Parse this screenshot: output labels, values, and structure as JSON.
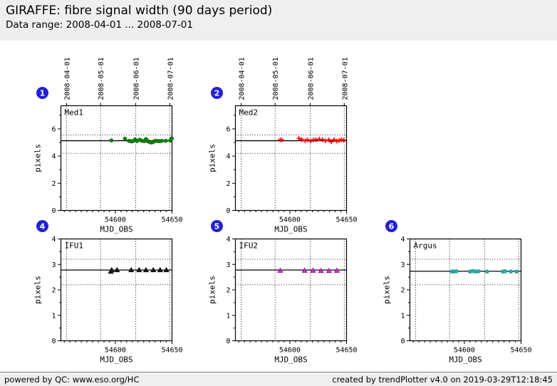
{
  "header": {
    "title": "GIRAFFE: fibre signal width (90 days period)",
    "subtitle": "Data range: 2008-04-01 ... 2008-07-01"
  },
  "footer": {
    "left": "powered by QC: www.eso.org/HC",
    "right": "created by trendPlotter v4.0 on 2019-03-29T12:18:45"
  },
  "colors": {
    "badge": "#2020dd",
    "header_band": "#efefef",
    "footer_band": "#efefef"
  },
  "chart_data": {
    "type": "scatter",
    "xlabel": "MJD_OBS",
    "ylabel": "pixels",
    "grid": true,
    "date_ticks": [
      {
        "mjd": 54557,
        "label": "2008-04-01"
      },
      {
        "mjd": 54587,
        "label": "2008-05-01"
      },
      {
        "mjd": 54618,
        "label": "2008-06-01"
      },
      {
        "mjd": 54648,
        "label": "2008-07-01"
      }
    ],
    "plots": [
      {
        "number": "1",
        "label": "Med1",
        "row": 0,
        "col": 0,
        "marker": "circle",
        "color": "#0e8c0e",
        "edge": "#045804",
        "xlim": [
          54552,
          54650
        ],
        "ylim": [
          0,
          7.7
        ],
        "xticks": [
          54600,
          54650
        ],
        "xminor": 5,
        "yticks": [
          0,
          2,
          4,
          6
        ],
        "yminor": 1,
        "top_axis": true,
        "mean": 5.13,
        "thresholds": [
          4.2,
          5.55
        ],
        "points": [
          [
            54596.5,
            5.15
          ],
          [
            54608.5,
            5.28
          ],
          [
            54612,
            5.12
          ],
          [
            54614,
            5.08
          ],
          [
            54615.5,
            5.1
          ],
          [
            54617.5,
            5.22
          ],
          [
            54619,
            5.1
          ],
          [
            54621.5,
            5.2
          ],
          [
            54623.5,
            5.12
          ],
          [
            54625.5,
            5.1
          ],
          [
            54627,
            5.25
          ],
          [
            54628.5,
            5.1
          ],
          [
            54630,
            5.05
          ],
          [
            54631.5,
            5.0
          ],
          [
            54633,
            5.02
          ],
          [
            54634.5,
            5.1
          ],
          [
            54636,
            5.12
          ],
          [
            54638,
            5.1
          ],
          [
            54639.5,
            5.1
          ],
          [
            54641,
            5.12
          ],
          [
            54644.5,
            5.12
          ],
          [
            54648.5,
            5.15
          ],
          [
            54649.8,
            5.3
          ]
        ]
      },
      {
        "number": "2",
        "label": "Med2",
        "row": 0,
        "col": 1,
        "marker": "plus",
        "color": "#ff0000",
        "edge": "#ff0000",
        "xlim": [
          54552,
          54650
        ],
        "ylim": [
          0,
          7.7
        ],
        "xticks": [
          54600,
          54650
        ],
        "xminor": 5,
        "yticks": [
          0,
          2,
          4,
          6
        ],
        "yminor": 1,
        "top_axis": true,
        "mean": 5.13,
        "thresholds": [
          4.2,
          5.55
        ],
        "points": [
          [
            54591.5,
            5.2
          ],
          [
            54593,
            5.18
          ],
          [
            54608,
            5.3
          ],
          [
            54610.5,
            5.22
          ],
          [
            54613.5,
            5.12
          ],
          [
            54615.5,
            5.2
          ],
          [
            54618.5,
            5.1
          ],
          [
            54621,
            5.2
          ],
          [
            54623,
            5.2
          ],
          [
            54626,
            5.25
          ],
          [
            54629,
            5.2
          ],
          [
            54631.5,
            5.12
          ],
          [
            54634.5,
            5.2
          ],
          [
            54636.5,
            5.05
          ],
          [
            54639,
            5.2
          ],
          [
            54641.5,
            5.1
          ],
          [
            54643.5,
            5.15
          ],
          [
            54645.5,
            5.2
          ],
          [
            54647.5,
            5.18
          ]
        ]
      },
      {
        "number": "4",
        "label": "IFU1",
        "row": 1,
        "col": 0,
        "marker": "triangle",
        "color": "#1a1a1a",
        "edge": "#000000",
        "xlim": [
          54552,
          54650
        ],
        "ylim": [
          0,
          4
        ],
        "xticks": [
          54600,
          54650
        ],
        "xminor": 5,
        "yticks": [
          0,
          1,
          2,
          3,
          4
        ],
        "yminor": 0.5,
        "top_axis": false,
        "mean": 2.78,
        "thresholds": [
          2.2,
          3.2
        ],
        "points": [
          [
            54596,
            2.72
          ],
          [
            54596.8,
            2.78
          ],
          [
            54601.5,
            2.78
          ],
          [
            54614,
            2.78
          ],
          [
            54621,
            2.78
          ],
          [
            54627,
            2.78
          ],
          [
            54633.5,
            2.78
          ],
          [
            54639.5,
            2.78
          ],
          [
            54645,
            2.78
          ]
        ]
      },
      {
        "number": "5",
        "label": "IFU2",
        "row": 1,
        "col": 1,
        "marker": "triangle",
        "color": "#d633d6",
        "edge": "#8b008b",
        "xlim": [
          54552,
          54650
        ],
        "ylim": [
          0,
          4
        ],
        "xticks": [
          54600,
          54650
        ],
        "xminor": 5,
        "yticks": [
          0,
          1,
          2,
          3,
          4
        ],
        "yminor": 0.5,
        "top_axis": false,
        "mean": 2.78,
        "thresholds": [
          2.2,
          3.2
        ],
        "points": [
          [
            54591.5,
            2.76
          ],
          [
            54613,
            2.76
          ],
          [
            54620.5,
            2.76
          ],
          [
            54627.5,
            2.75
          ],
          [
            54634.5,
            2.75
          ],
          [
            54641.5,
            2.76
          ]
        ]
      },
      {
        "number": "6",
        "label": "Argus",
        "row": 1,
        "col": 2,
        "marker": "circle",
        "color": "#27b4ac",
        "edge": "#0e8d86",
        "xlim": [
          54552,
          54650
        ],
        "ylim": [
          0,
          4
        ],
        "xticks": [
          54600,
          54650
        ],
        "xminor": 5,
        "yticks": [
          0,
          1,
          2,
          3,
          4
        ],
        "yminor": 0.5,
        "top_axis": false,
        "mean": 2.73,
        "thresholds": [
          2.2,
          3.2
        ],
        "points": [
          [
            54589,
            2.72
          ],
          [
            54591,
            2.72
          ],
          [
            54593,
            2.73
          ],
          [
            54605,
            2.72
          ],
          [
            54607.5,
            2.74
          ],
          [
            54610,
            2.72
          ],
          [
            54612.5,
            2.73
          ],
          [
            54620,
            2.72
          ],
          [
            54634,
            2.72
          ],
          [
            54636,
            2.73
          ],
          [
            54641,
            2.72
          ],
          [
            54646,
            2.72
          ]
        ]
      }
    ]
  }
}
